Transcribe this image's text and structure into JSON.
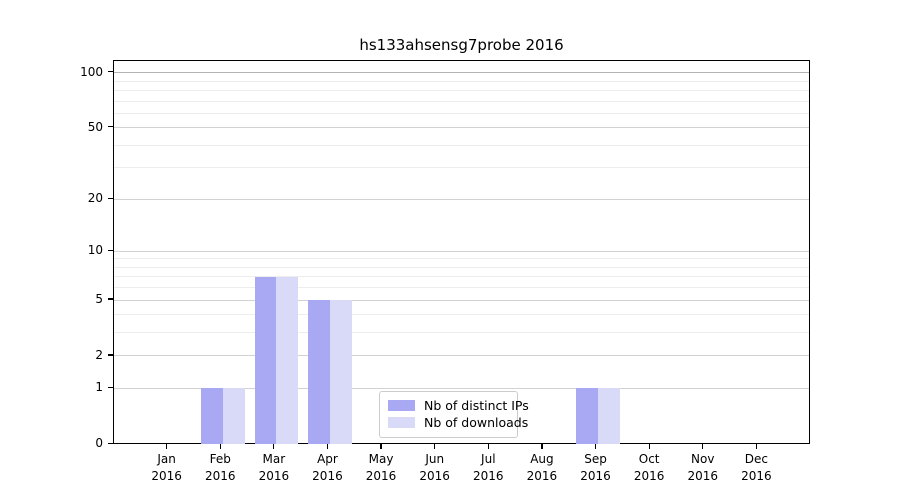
{
  "chart_data": {
    "type": "bar",
    "title": "hs133ahsensg7probe 2016",
    "categories": [
      "Jan",
      "Feb",
      "Mar",
      "Apr",
      "May",
      "Jun",
      "Jul",
      "Aug",
      "Sep",
      "Oct",
      "Nov",
      "Dec"
    ],
    "category_year": "2016",
    "series": [
      {
        "name": "Nb of distinct IPs",
        "color": "#a9a9f3",
        "values": [
          0,
          1,
          7,
          5,
          0,
          0,
          0,
          0,
          1,
          0,
          0,
          0
        ]
      },
      {
        "name": "Nb of downloads",
        "color": "#d9d9f8",
        "values": [
          0,
          1,
          7,
          5,
          0,
          0,
          0,
          0,
          1,
          0,
          0,
          0
        ]
      }
    ],
    "yscale": "log10(value+1)",
    "yticks": [
      0,
      1,
      2,
      5,
      10,
      20,
      50,
      100
    ],
    "minor_yticks": [
      3,
      4,
      6,
      7,
      8,
      9,
      30,
      40,
      60,
      70,
      80,
      90
    ],
    "ylim": [
      0,
      116
    ],
    "xlabel": "",
    "ylabel": "",
    "grid": true,
    "legend_position": "inside-bottom-center"
  },
  "colors": {
    "major_grid": "#d2d2d2",
    "top_grid": "#b3b3b3",
    "minor_grid": "#ededed",
    "axis": "#000000",
    "background": "#ffffff"
  }
}
